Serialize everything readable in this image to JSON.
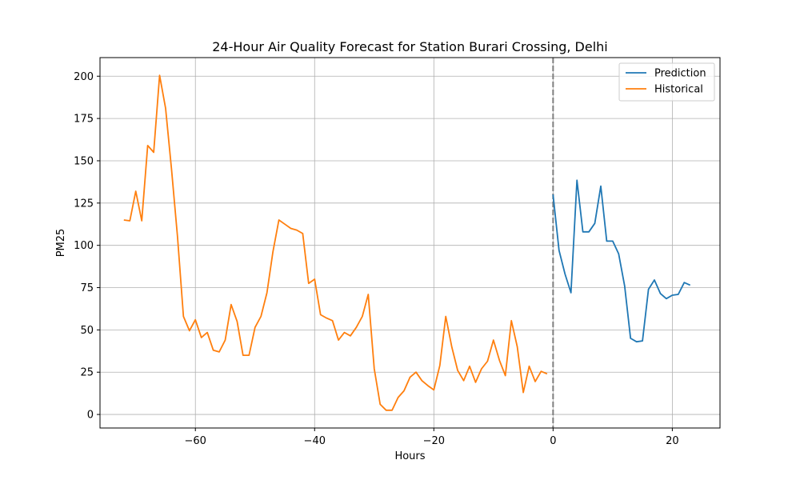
{
  "chart_data": {
    "type": "line",
    "title": "24-Hour Air Quality Forecast for Station Burari Crossing, Delhi",
    "xlabel": "Hours",
    "ylabel": "PM25",
    "xlim": [
      -76,
      28
    ],
    "ylim": [
      -8,
      211
    ],
    "x_ticks": [
      -60,
      -40,
      -20,
      0,
      20
    ],
    "x_tick_labels": [
      "−60",
      "−40",
      "−20",
      "0",
      "20"
    ],
    "y_ticks": [
      0,
      25,
      50,
      75,
      100,
      125,
      150,
      175,
      200
    ],
    "y_tick_labels": [
      "0",
      "25",
      "50",
      "75",
      "100",
      "125",
      "150",
      "175",
      "200"
    ],
    "grid": true,
    "legend_position": "top-right",
    "vertical_marker": {
      "x": 0,
      "style": "dashed",
      "color": "#7f7f7f"
    },
    "series": [
      {
        "name": "Prediction",
        "color": "#1f77b4",
        "x": [
          0,
          1,
          2,
          3,
          4,
          5,
          6,
          7,
          8,
          9,
          10,
          11,
          12,
          13,
          14,
          15,
          16,
          17,
          18,
          19,
          20,
          21,
          22,
          23
        ],
        "y": [
          130,
          97,
          83,
          72,
          138.5,
          108,
          108,
          113,
          135,
          102.5,
          102.5,
          95,
          76,
          45,
          43,
          43.5,
          74,
          79.5,
          71.5,
          68.5,
          70.5,
          71,
          78,
          76.5
        ]
      },
      {
        "name": "Historical",
        "color": "#ff7f0e",
        "x": [
          -72,
          -71,
          -70,
          -69,
          -68,
          -67,
          -66,
          -65,
          -64,
          -63,
          -62,
          -61,
          -60,
          -59,
          -58,
          -57,
          -56,
          -55,
          -54,
          -53,
          -52,
          -51,
          -50,
          -49,
          -48,
          -47,
          -46,
          -45,
          -44,
          -43,
          -42,
          -41,
          -40,
          -39,
          -38,
          -37,
          -36,
          -35,
          -34,
          -33,
          -32,
          -31,
          -30,
          -29,
          -28,
          -27,
          -26,
          -25,
          -24,
          -23,
          -22,
          -21,
          -20,
          -19,
          -18,
          -17,
          -16,
          -15,
          -14,
          -13,
          -12,
          -11,
          -10,
          -9,
          -8,
          -7,
          -6,
          -5,
          -4,
          -3,
          -2,
          -1
        ],
        "y": [
          115,
          114.5,
          132,
          114.5,
          159,
          155,
          200.5,
          181,
          145,
          105,
          58,
          49.5,
          56,
          45.5,
          48.5,
          38,
          37,
          44,
          65,
          55,
          35,
          35,
          51.5,
          58,
          72,
          96,
          115,
          112.5,
          110,
          109,
          107,
          77.5,
          80,
          59,
          57,
          55.5,
          44,
          48.5,
          46.5,
          51.5,
          58,
          71,
          27,
          6,
          2.5,
          2.5,
          10,
          14,
          22,
          25,
          20,
          17,
          14.5,
          29,
          58,
          40,
          26,
          20,
          28.5,
          19,
          27,
          31.5,
          44,
          32,
          23,
          55.5,
          40,
          13,
          28.5,
          19.5,
          25.5,
          24
        ]
      }
    ]
  }
}
